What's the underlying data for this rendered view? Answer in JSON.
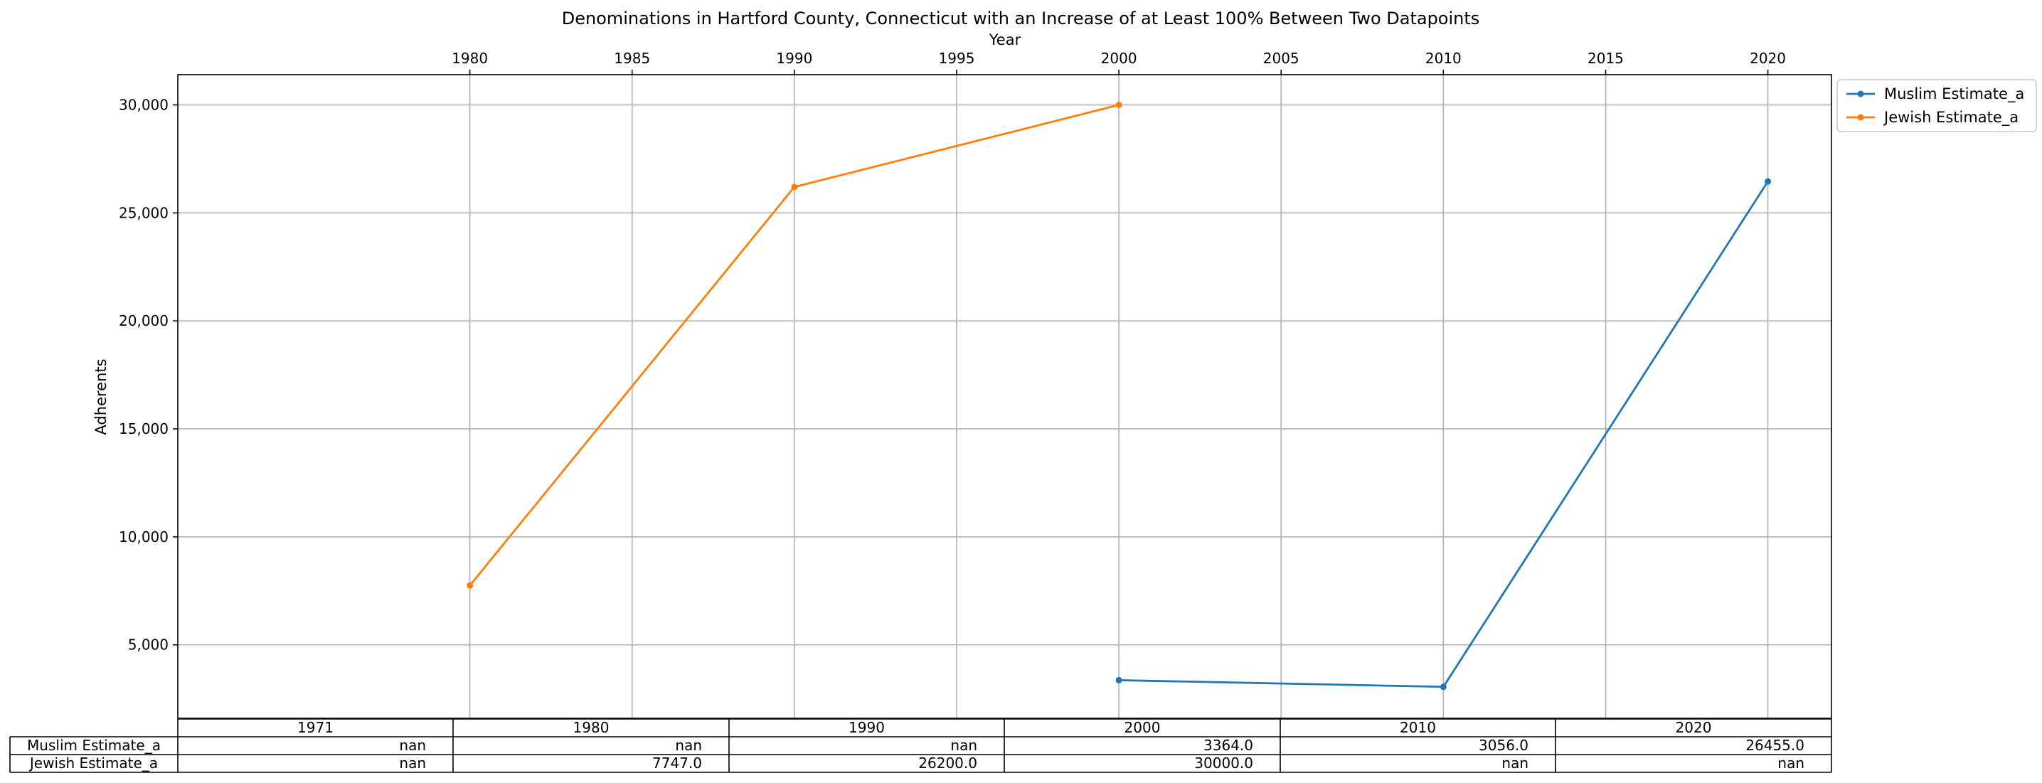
{
  "chart_data": {
    "type": "line",
    "title": "Denominations in Hartford County, Connecticut with an Increase of at Least 100% Between Two Datapoints",
    "xlabel": "Year",
    "ylabel": "Adherents",
    "x_axis_position": "top",
    "x_ticks": [
      "1980",
      "1985",
      "1990",
      "1995",
      "2000",
      "2005",
      "2010",
      "2015",
      "2020"
    ],
    "y_ticks": [
      "5,000",
      "10,000",
      "15,000",
      "20,000",
      "25,000",
      "30,000"
    ],
    "xlim": [
      1971,
      2021.96
    ],
    "ylim": [
      1600,
      31400
    ],
    "grid": true,
    "legend_placement": "outside upper right",
    "series": [
      {
        "name": "Muslim Estimate_a",
        "color": "#1f77b4",
        "points": [
          [
            2000,
            3364.0
          ],
          [
            2010,
            3056.0
          ],
          [
            2020,
            26455.0
          ]
        ]
      },
      {
        "name": "Jewish Estimate_a",
        "color": "#ff7f0e",
        "points": [
          [
            1980,
            7747.0
          ],
          [
            1990,
            26200.0
          ],
          [
            2000,
            30000.0
          ]
        ]
      }
    ],
    "table": {
      "columns": [
        "1971",
        "1980",
        "1990",
        "2000",
        "2010",
        "2020"
      ],
      "rows": [
        {
          "label": "Muslim Estimate_a",
          "cells": [
            "nan",
            "nan",
            "nan",
            "3364.0",
            "3056.0",
            "26455.0"
          ]
        },
        {
          "label": "Jewish Estimate_a",
          "cells": [
            "nan",
            "7747.0",
            "26200.0",
            "30000.0",
            "nan",
            "nan"
          ]
        }
      ]
    }
  }
}
